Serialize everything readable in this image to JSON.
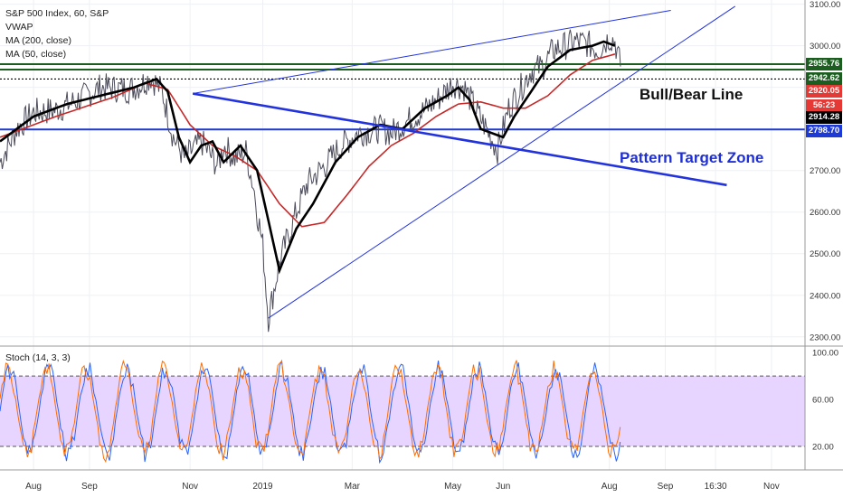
{
  "legend": {
    "title": "S&P 500 Index, 60, S&P",
    "line2": "VWAP",
    "line3": "MA (200, close)",
    "line4": "MA (50, close)"
  },
  "stoch_legend": "Stoch (14, 3, 3)",
  "annotations": {
    "bull_bear": "Bull/Bear Line",
    "target_zone": "Pattern Target Zone"
  },
  "price_tags": [
    {
      "label": "2955.76",
      "bg": "#1b5e20",
      "fg": "#ffffff"
    },
    {
      "label": "2942.62",
      "bg": "#1b5e20",
      "fg": "#ffffff"
    },
    {
      "label": "2920.05",
      "bg": "#e53935",
      "fg": "#ffffff"
    },
    {
      "label": "56:23",
      "bg": "#e53935",
      "fg": "#ffffff"
    },
    {
      "label": "2914.28",
      "bg": "#000000",
      "fg": "#ffffff"
    },
    {
      "label": "2798.70",
      "bg": "#1e3ad6",
      "fg": "#ffffff"
    }
  ],
  "colors": {
    "price": "#4b4b5a",
    "vwap_ma50": "#000000",
    "ma200": "#c62828",
    "trendline": "#2233dd",
    "support": "#1e3ad6",
    "resistance": "#1b5e20",
    "stoch_k": "#2962ff",
    "stoch_d": "#ff6d00",
    "stoch_band": "#e8d5ff"
  },
  "chart_data": [
    {
      "type": "line",
      "title": "S&P 500 Index, 60, S&P",
      "x_ticks": [
        "Aug",
        "Sep",
        "Nov",
        "2019",
        "Mar",
        "May",
        "Jun",
        "Aug",
        "Sep",
        "16:30",
        "Nov"
      ],
      "x_tick_positions": [
        0.6,
        1.6,
        3.4,
        4.7,
        6.3,
        8.1,
        9.0,
        10.9,
        11.9,
        12.8,
        13.8
      ],
      "y_ticks": [
        2300,
        2400,
        2500,
        2600,
        2700,
        2800,
        2900,
        3000,
        3100
      ],
      "ylim": [
        2280,
        3110
      ],
      "xlim": [
        0,
        14.4
      ],
      "series": [
        {
          "name": "S&P 500 Index",
          "x": [
            0,
            0.3,
            0.6,
            1.0,
            1.4,
            1.8,
            2.3,
            2.5,
            2.7,
            2.9,
            3.1,
            3.3,
            3.6,
            3.9,
            4.0,
            4.2,
            4.4,
            4.55,
            4.6,
            4.7,
            4.8,
            5.0,
            5.3,
            5.5,
            5.8,
            6.1,
            6.4,
            6.8,
            7.0,
            7.3,
            7.6,
            7.9,
            8.1,
            8.3,
            8.5,
            8.7,
            8.9,
            9.1,
            9.3,
            9.5,
            9.7,
            9.9,
            10.1,
            10.3,
            10.5,
            10.7,
            10.9,
            11.0,
            11.1
          ],
          "values": [
            2720,
            2800,
            2840,
            2845,
            2870,
            2900,
            2895,
            2905,
            2925,
            2890,
            2780,
            2730,
            2770,
            2710,
            2760,
            2730,
            2745,
            2650,
            2600,
            2520,
            2345,
            2480,
            2600,
            2670,
            2710,
            2760,
            2790,
            2800,
            2790,
            2820,
            2845,
            2880,
            2910,
            2900,
            2850,
            2800,
            2750,
            2850,
            2895,
            2940,
            2950,
            2990,
            3000,
            3010,
            3005,
            2990,
            3020,
            3010,
            2950
          ]
        },
        {
          "name": "VWAP",
          "x": [
            0,
            0.6,
            1.2,
            1.8,
            2.4,
            2.8,
            3.0,
            3.2,
            3.4,
            3.6,
            3.8,
            4.0,
            4.3,
            4.6,
            4.8,
            5.0,
            5.3,
            5.6,
            6.0,
            6.4,
            6.8,
            7.2,
            7.6,
            8.0,
            8.2,
            8.4,
            8.6,
            8.8,
            9.0,
            9.2,
            9.4,
            9.6,
            9.8,
            10.0,
            10.2,
            10.4,
            10.6,
            10.8,
            11.0
          ],
          "values": [
            2770,
            2830,
            2860,
            2880,
            2900,
            2920,
            2890,
            2780,
            2720,
            2760,
            2770,
            2720,
            2760,
            2700,
            2580,
            2460,
            2560,
            2620,
            2720,
            2780,
            2810,
            2800,
            2850,
            2880,
            2900,
            2870,
            2800,
            2790,
            2780,
            2830,
            2870,
            2910,
            2950,
            2970,
            2990,
            2995,
            3000,
            3010,
            3000
          ]
        },
        {
          "name": "MA (200, close)",
          "x": [
            0,
            1.0,
            2.0,
            2.6,
            3.0,
            3.4,
            3.8,
            4.2,
            4.6,
            5.0,
            5.4,
            5.8,
            6.2,
            6.6,
            7.0,
            7.4,
            7.8,
            8.2,
            8.6,
            9.0,
            9.4,
            9.8,
            10.2,
            10.6,
            11.0
          ],
          "values": [
            2780,
            2830,
            2875,
            2910,
            2895,
            2810,
            2760,
            2735,
            2700,
            2620,
            2565,
            2575,
            2640,
            2710,
            2760,
            2790,
            2830,
            2860,
            2865,
            2850,
            2850,
            2880,
            2930,
            2965,
            2980
          ]
        }
      ],
      "lines": [
        {
          "name": "resistance-upper",
          "y": 2955.76
        },
        {
          "name": "resistance-lower",
          "y": 2942.62
        },
        {
          "name": "bull-bear-line",
          "y": 2920.05
        },
        {
          "name": "support-2798",
          "y": 2798.7
        }
      ]
    },
    {
      "type": "line",
      "title": "Stoch (14, 3, 3)",
      "y_ticks": [
        20,
        60,
        100
      ],
      "ylim": [
        0,
        104
      ],
      "band": [
        20,
        80
      ]
    }
  ]
}
